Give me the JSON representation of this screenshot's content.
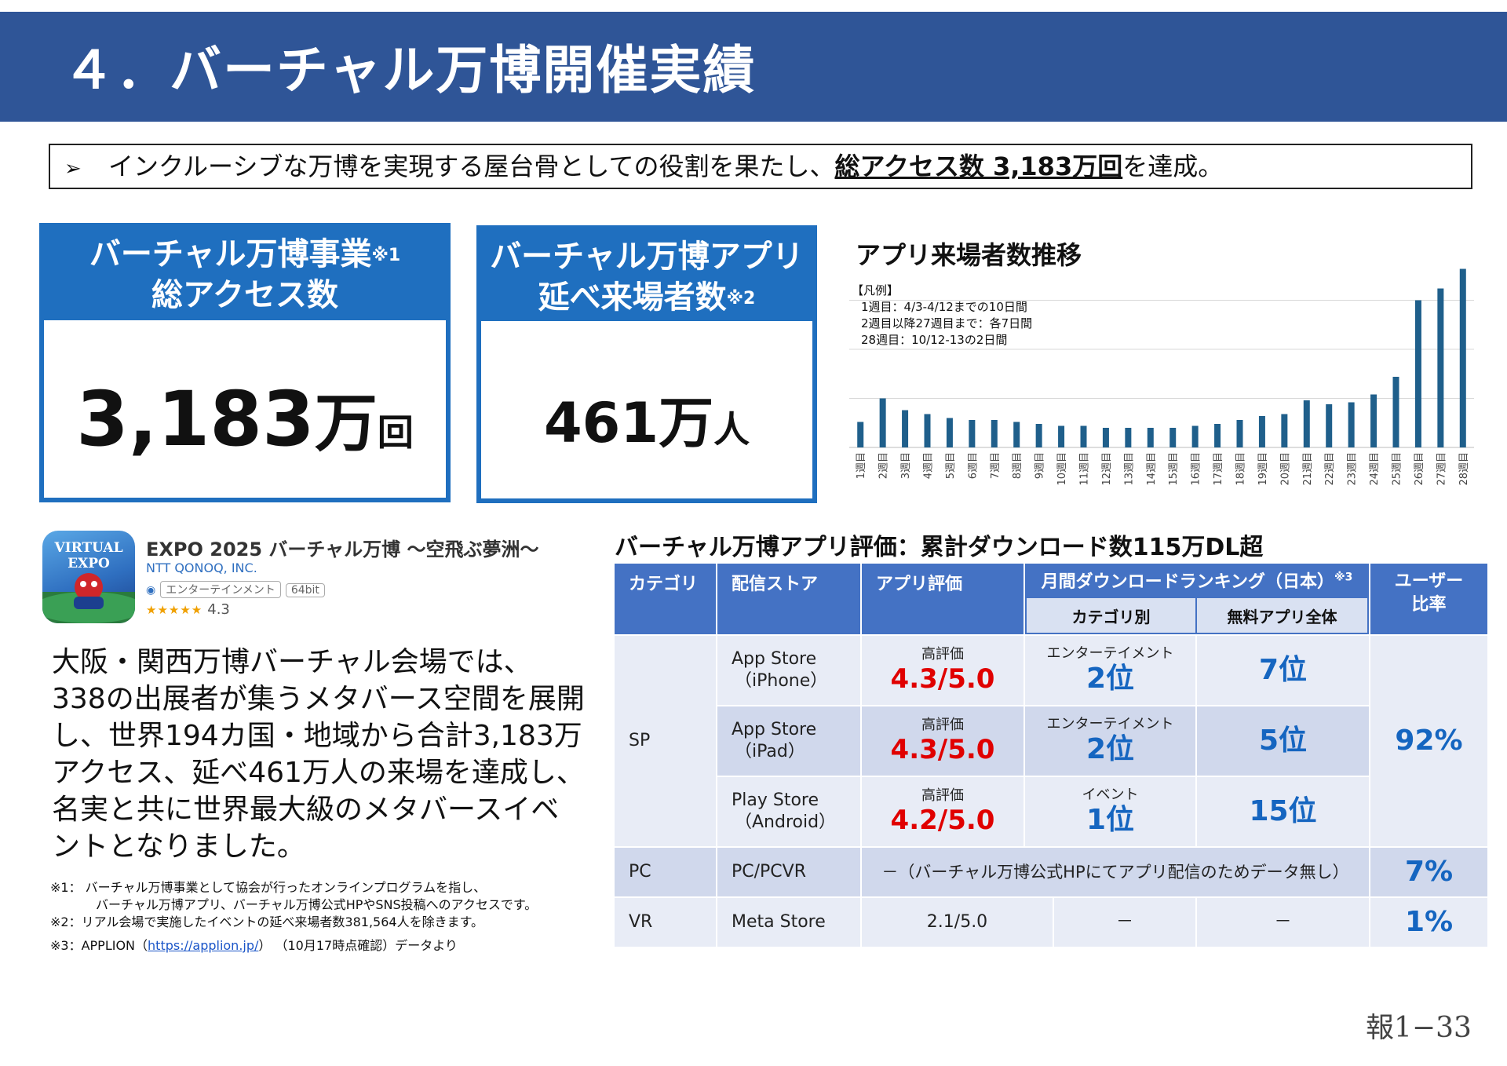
{
  "header": {
    "title": "４．バーチャル万博開催実績"
  },
  "summary": {
    "arrow": "➢",
    "text_before": "インクルーシブな万博を実現する屋台骨としての役割を果たし、",
    "emphasis": "総アクセス数 3,183万回",
    "text_after": "を達成。"
  },
  "stat_access": {
    "line1": "バーチャル万博事業",
    "mark": "※1",
    "line2": "総アクセス数",
    "number": "3,183",
    "unit": "万",
    "unit2": "回"
  },
  "stat_visitors": {
    "line1": "バーチャル万博アプリ",
    "line2": "延べ来場者数",
    "mark": "※2",
    "number": "461",
    "unit": "万",
    "unit2": "人"
  },
  "chart_data": {
    "type": "bar",
    "title": "アプリ来場者数推移",
    "legend_lines": [
      "【凡例】",
      "1週目：4/3-4/12までの10日間",
      "2週目以降27週目まで：各7日間",
      "28週目：10/12-13の2日間"
    ],
    "categories": [
      "1週目",
      "2週目",
      "3週目",
      "4週目",
      "5週目",
      "6週目",
      "7週目",
      "8週目",
      "9週目",
      "10週目",
      "11週目",
      "12週目",
      "13週目",
      "14週目",
      "15週目",
      "16週目",
      "17週目",
      "18週目",
      "19週目",
      "20週目",
      "21週目",
      "22週目",
      "23週目",
      "24週目",
      "25週目",
      "26週目",
      "27週目",
      "28週目"
    ],
    "values": [
      13,
      25,
      19,
      17,
      15,
      14,
      14,
      13,
      12,
      11,
      11,
      10,
      10,
      10,
      10,
      11,
      12,
      14,
      16,
      17,
      24,
      22,
      23,
      27,
      36,
      75,
      81,
      91
    ],
    "ylim": [
      0,
      100
    ],
    "grid": true,
    "bar_color": "#1f5f8b"
  },
  "app": {
    "name": "EXPO 2025 バーチャル万博 〜空飛ぶ夢洲〜",
    "developer": "NTT QONOQ, INC.",
    "tag_genre": "エンターテインメント",
    "tag_bit": "64bit",
    "stars": "★★★★★",
    "rating": "4.3",
    "icon_text": "VIRTUAL EXPO"
  },
  "paragraph": "大阪・関西万博バーチャル会場では、338の出展者が集うメタバース空間を展開し、世界194カ国・地域から合計3,183万アクセス、延べ461万人の来場を達成し、名実と共に世界最大級のメタバースイベントとなりました。",
  "notes": {
    "n1_a": "※1： バーチャル万博事業として協会が行ったオンラインプログラムを指し、",
    "n1_b": "バーチャル万博アプリ、バーチャル万博公式HPやSNS投稿へのアクセスです。",
    "n2": "※2：リアル会場で実施したイベントの延べ来場者数381,564人を除きます。",
    "n3_prefix": "※3：APPLION（",
    "n3_link": "https://applion.jp/",
    "n3_suffix": "） （10月17時点確認）データより"
  },
  "table": {
    "title": "バーチャル万博アプリ評価：累計ダウンロード数115万DL超",
    "headers": {
      "category": "カテゴリ",
      "store": "配信ストア",
      "rating": "アプリ評価",
      "ranking": "月間ダウンロードランキング（日本）",
      "ranking_mark": "※3",
      "ranking_cat": "カテゴリ別",
      "ranking_free": "無料アプリ全体",
      "user_ratio_1": "ユーザー",
      "user_ratio_2": "比率"
    },
    "sp": {
      "category": "SP",
      "ratio": "92%",
      "rows": [
        {
          "store1": "App Store",
          "store2": "（iPhone）",
          "rating_label": "高評価",
          "rating": "4.3/5.0",
          "cat_label": "エンターテイメント",
          "cat_rank": "2位",
          "free_rank": "7位"
        },
        {
          "store1": "App Store",
          "store2": "（iPad）",
          "rating_label": "高評価",
          "rating": "4.3/5.0",
          "cat_label": "エンターテイメント",
          "cat_rank": "2位",
          "free_rank": "5位"
        },
        {
          "store1": "Play Store",
          "store2": "（Android）",
          "rating_label": "高評価",
          "rating": "4.2/5.0",
          "cat_label": "イベント",
          "cat_rank": "1位",
          "free_rank": "15位"
        }
      ]
    },
    "pc": {
      "category": "PC",
      "store": "PC/PCVR",
      "note": "－（バーチャル万博公式HPにてアプリ配信のためデータ無し）",
      "ratio": "7%"
    },
    "vr": {
      "category": "VR",
      "store": "Meta Store",
      "rating": "2.1/5.0",
      "cat_rank": "－",
      "free_rank": "－",
      "ratio": "1%"
    }
  },
  "page_number": "報1−33"
}
